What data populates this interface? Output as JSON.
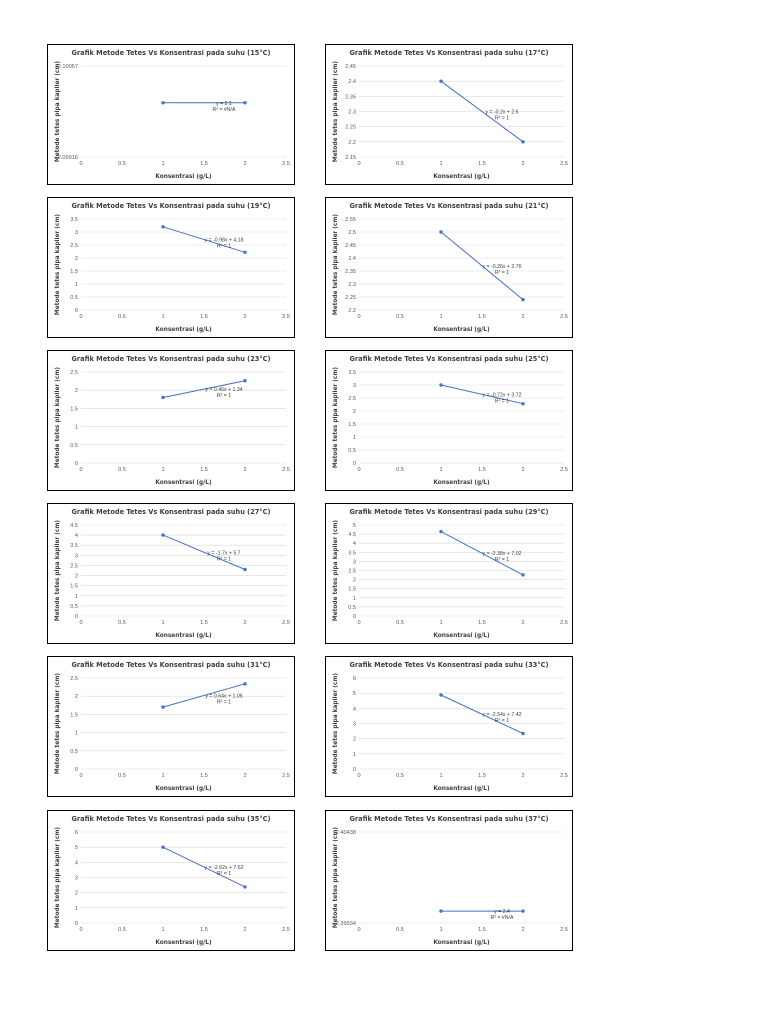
{
  "chart_data": [
    {
      "type": "line",
      "title": "Grafik Metode Tetes Vs Konsentrasi pada suhu (15°C)",
      "xlabel": "Konsentrasi (g/L)",
      "ylabel": "Metode tetes pipa kapiler (cm)",
      "xlim": [
        0,
        2.5
      ],
      "xticks": [
        "0",
        "0.5",
        "1",
        "1.5",
        "2",
        "2.5"
      ],
      "ylim": [
        2.09916,
        2.10057
      ],
      "yticks": [
        "2.09916",
        "2.10057"
      ],
      "x": [
        1,
        2
      ],
      "series": [
        {
          "name": "Metode tetes",
          "values": [
            2.1,
            2.1
          ]
        }
      ],
      "equation": "y = 2.1",
      "r2": "R² = #N/A"
    },
    {
      "type": "line",
      "title": "Grafik Metode Tetes Vs Konsentrasi pada suhu (17°C)",
      "xlabel": "Konsentrasi (g/L)",
      "ylabel": "Metode tetes pipa kapiler (cm)",
      "xlim": [
        0,
        2.5
      ],
      "xticks": [
        "0",
        "0.5",
        "1",
        "1.5",
        "2",
        "2.5"
      ],
      "ylim": [
        2.15,
        2.45
      ],
      "yticks": [
        "2.15",
        "2.2",
        "2.25",
        "2.3",
        "2.35",
        "2.4",
        "2.45"
      ],
      "x": [
        1,
        2
      ],
      "series": [
        {
          "name": "Metode tetes",
          "values": [
            2.4,
            2.2
          ]
        }
      ],
      "equation": "y = -0.2x + 2.6",
      "r2": "R² = 1"
    },
    {
      "type": "line",
      "title": "Grafik Metode Tetes Vs Konsentrasi pada suhu (19°C)",
      "xlabel": "Konsentrasi (g/L)",
      "ylabel": "Metode tetes pipa kapiler (cm)",
      "xlim": [
        0,
        2.5
      ],
      "xticks": [
        "0",
        "0.5",
        "1",
        "1.5",
        "2",
        "2.5"
      ],
      "ylim": [
        0,
        3.5
      ],
      "yticks": [
        "0",
        "0.5",
        "1",
        "1.5",
        "2",
        "2.5",
        "3",
        "3.5"
      ],
      "x": [
        1,
        2
      ],
      "series": [
        {
          "name": "Metode tetes",
          "values": [
            3.2,
            2.22
          ]
        }
      ],
      "equation": "y = -0.98x + 4.18",
      "r2": "R² = 1"
    },
    {
      "type": "line",
      "title": "Grafik Metode Tetes Vs Konsentrasi pada suhu (21°C)",
      "xlabel": "Konsentrasi (g/L)",
      "ylabel": "Metode tetes pipa kapiler (cm)",
      "xlim": [
        0,
        2.5
      ],
      "xticks": [
        "0",
        "0.5",
        "1",
        "1.5",
        "2",
        "2.5"
      ],
      "ylim": [
        2.2,
        2.55
      ],
      "yticks": [
        "2.2",
        "2.25",
        "2.3",
        "2.35",
        "2.4",
        "2.45",
        "2.5",
        "2.55"
      ],
      "x": [
        1,
        2
      ],
      "series": [
        {
          "name": "Metode tetes",
          "values": [
            2.5,
            2.24
          ]
        }
      ],
      "equation": "y = -0.26x + 2.76",
      "r2": "R² = 1"
    },
    {
      "type": "line",
      "title": "Grafik Metode Tetes Vs Konsentrasi pada suhu (23°C)",
      "xlabel": "Konsentrasi (g/L)",
      "ylabel": "Metode tetes pipa kapiler (cm)",
      "xlim": [
        0,
        2.5
      ],
      "xticks": [
        "0",
        "0.5",
        "1",
        "1.5",
        "2",
        "2.5"
      ],
      "ylim": [
        0,
        2.5
      ],
      "yticks": [
        "0",
        "0.5",
        "1",
        "1.5",
        "2",
        "2.5"
      ],
      "x": [
        1,
        2
      ],
      "series": [
        {
          "name": "Metode tetes",
          "values": [
            1.8,
            2.26
          ]
        }
      ],
      "equation": "y = 0.46x + 1.34",
      "r2": "R² = 1"
    },
    {
      "type": "line",
      "title": "Grafik Metode Tetes Vs Konsentrasi pada suhu (25°C)",
      "xlabel": "Konsentrasi (g/L)",
      "ylabel": "Metode tetes pipa kapiler (cm)",
      "xlim": [
        0,
        2.5
      ],
      "xticks": [
        "0",
        "0.5",
        "1",
        "1.5",
        "2",
        "2.5"
      ],
      "ylim": [
        0,
        3.5
      ],
      "yticks": [
        "0",
        "0.5",
        "1",
        "1.5",
        "2",
        "2.5",
        "3",
        "3.5"
      ],
      "x": [
        1,
        2
      ],
      "series": [
        {
          "name": "Metode tetes",
          "values": [
            3.0,
            2.28
          ]
        }
      ],
      "equation": "y = -0.72x + 3.72",
      "r2": "R² = 1"
    },
    {
      "type": "line",
      "title": "Grafik Metode Tetes Vs Konsentrasi pada suhu (27°C)",
      "xlabel": "Konsentrasi (g/L)",
      "ylabel": "Metode tetes pipa kapiler (cm)",
      "xlim": [
        0,
        2.5
      ],
      "xticks": [
        "0",
        "0.5",
        "1",
        "1.5",
        "2",
        "2.5"
      ],
      "ylim": [
        0,
        4.5
      ],
      "yticks": [
        "0",
        "0.5",
        "1",
        "1.5",
        "2",
        "2.5",
        "3",
        "3.5",
        "4",
        "4.5"
      ],
      "x": [
        1,
        2
      ],
      "series": [
        {
          "name": "Metode tetes",
          "values": [
            4.0,
            2.3
          ]
        }
      ],
      "equation": "y = -1.7x + 5.7",
      "r2": "R² = 1"
    },
    {
      "type": "line",
      "title": "Grafik Metode Tetes Vs Konsentrasi pada suhu (29°C)",
      "xlabel": "Konsentrasi (g/L)",
      "ylabel": "Metode tetes pipa kapiler (cm)",
      "xlim": [
        0,
        2.5
      ],
      "xticks": [
        "0",
        "0.5",
        "1",
        "1.5",
        "2",
        "2.5"
      ],
      "ylim": [
        0,
        5
      ],
      "yticks": [
        "0",
        "0.5",
        "1",
        "1.5",
        "2",
        "2.5",
        "3",
        "3.5",
        "4",
        "4.5",
        "5"
      ],
      "x": [
        1,
        2
      ],
      "series": [
        {
          "name": "Metode tetes",
          "values": [
            4.64,
            2.26
          ]
        }
      ],
      "equation": "y = -2.38x + 7.02",
      "r2": "R² = 1"
    },
    {
      "type": "line",
      "title": "Grafik Metode Tetes Vs Konsentrasi pada suhu (31°C)",
      "xlabel": "Konsentrasi (g/L)",
      "ylabel": "Metode tetes pipa kapiler (cm)",
      "xlim": [
        0,
        2.5
      ],
      "xticks": [
        "0",
        "0.5",
        "1",
        "1.5",
        "2",
        "2.5"
      ],
      "ylim": [
        0,
        2.5
      ],
      "yticks": [
        "0",
        "0.5",
        "1",
        "1.5",
        "2",
        "2.5"
      ],
      "x": [
        1,
        2
      ],
      "series": [
        {
          "name": "Metode tetes",
          "values": [
            1.7,
            2.34
          ]
        }
      ],
      "equation": "y = 0.64x + 1.06",
      "r2": "R² = 1"
    },
    {
      "type": "line",
      "title": "Grafik Metode Tetes Vs Konsentrasi pada suhu (33°C)",
      "xlabel": "Konsentrasi (g/L)",
      "ylabel": "Metode tetes pipa kapiler (cm)",
      "xlim": [
        0,
        2.5
      ],
      "xticks": [
        "0",
        "0.5",
        "1",
        "1.5",
        "2",
        "2.5"
      ],
      "ylim": [
        0,
        6
      ],
      "yticks": [
        "0",
        "1",
        "2",
        "3",
        "4",
        "5",
        "6"
      ],
      "x": [
        1,
        2
      ],
      "series": [
        {
          "name": "Metode tetes",
          "values": [
            4.88,
            2.34
          ]
        }
      ],
      "equation": "y = -2.54x + 7.42",
      "r2": "R² = 1"
    },
    {
      "type": "line",
      "title": "Grafik Metode Tetes Vs Konsentrasi pada suhu (35°C)",
      "xlabel": "Konsentrasi (g/L)",
      "ylabel": "Metode tetes pipa kapiler (cm)",
      "xlim": [
        0,
        2.5
      ],
      "xticks": [
        "0",
        "0.5",
        "1",
        "1.5",
        "2",
        "2.5"
      ],
      "ylim": [
        0,
        6
      ],
      "yticks": [
        "0",
        "1",
        "2",
        "3",
        "4",
        "5",
        "6"
      ],
      "x": [
        1,
        2
      ],
      "series": [
        {
          "name": "Metode tetes",
          "values": [
            5.0,
            2.38
          ]
        }
      ],
      "equation": "y = -2.62x + 7.62",
      "r2": "R² = 1"
    },
    {
      "type": "line",
      "title": "Grafik Metode Tetes Vs Konsentrasi pada suhu (37°C)",
      "xlabel": "Konsentrasi (g/L)",
      "ylabel": "Metode tetes pipa kapiler (cm)",
      "xlim": [
        0,
        2.5
      ],
      "xticks": [
        "0",
        "0.5",
        "1",
        "1.5",
        "2",
        "2.5"
      ],
      "ylim": [
        2.39934,
        2.40438
      ],
      "yticks": [
        "2.39934",
        "2.40438"
      ],
      "x": [
        1,
        2
      ],
      "series": [
        {
          "name": "Metode tetes",
          "values": [
            2.4,
            2.4
          ]
        }
      ],
      "equation": "y = 2.4",
      "r2": "R² = #N/A"
    }
  ],
  "colors": {
    "series": "#4472c4",
    "grid": "#d9d9d9",
    "border": "#000000",
    "text": "#404040"
  }
}
